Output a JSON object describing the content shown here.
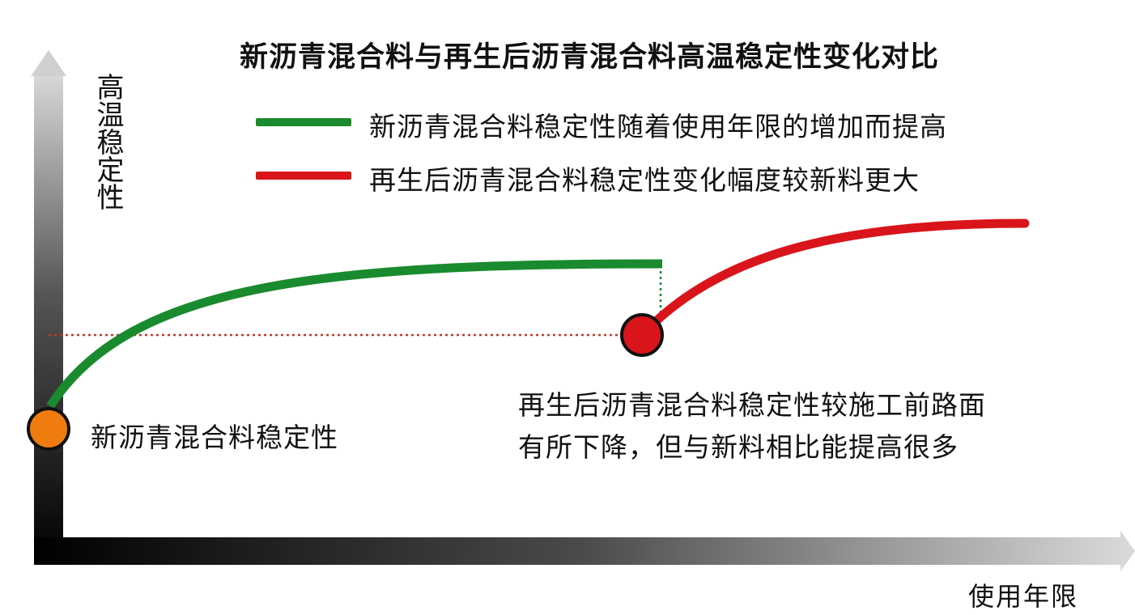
{
  "title": "新沥青混合料与再生后沥青混合料高温稳定性变化对比",
  "axes": {
    "y_label": "高温稳定性",
    "x_label": "使用年限"
  },
  "legend": [
    {
      "label": "新沥青混合料稳定性随着使用年限的增加而提高",
      "color": "#1a8a2e"
    },
    {
      "label": "再生后沥青混合料稳定性变化幅度较新料更大",
      "color": "#d9141b"
    }
  ],
  "annotations": {
    "new_material": "新沥青混合料稳定性",
    "recycled_line1": "再生后沥青混合料稳定性较施工前路面",
    "recycled_line2": "有所下降，但与新料相比能提高很多"
  },
  "colors": {
    "green": "#1a8a2e",
    "red": "#d9141b",
    "orange": "#f07c0f",
    "dotted_red": "#c0392b",
    "axis_dark": "#000000"
  }
}
